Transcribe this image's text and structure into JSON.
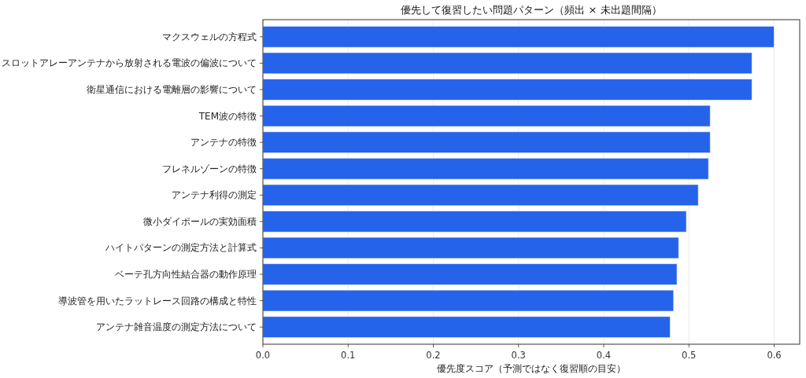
{
  "chart_data": {
    "type": "bar",
    "orientation": "horizontal",
    "title": "優先して復習したい問題パターン（頻出 × 未出題間隔）",
    "xlabel": "優先度スコア（予測ではなく復習順の目安）",
    "categories": [
      "マクスウェルの方程式",
      "スロットアレーアンテナから放射される電波の偏波について",
      "衛星通信における電離層の影響について",
      "TEM波の特徴",
      "アンテナの特徴",
      "フレネルゾーンの特徴",
      "アンテナ利得の測定",
      "微小ダイポールの実効面積",
      "ハイトパターンの測定方法と計算式",
      "ベーテ孔方向性結合器の動作原理",
      "導波管を用いたラットレース回路の構成と特性",
      "アンテナ雑音温度の測定方法について"
    ],
    "values": [
      0.6,
      0.574,
      0.574,
      0.525,
      0.525,
      0.523,
      0.511,
      0.497,
      0.488,
      0.486,
      0.482,
      0.478
    ],
    "color": "#2563eb",
    "xlim": [
      0,
      0.63
    ],
    "xticks": [
      {
        "value": 0,
        "label": "0.0"
      },
      0.1,
      0.2,
      0.3,
      0.4,
      0.5,
      0.6
    ],
    "grid": "x"
  }
}
